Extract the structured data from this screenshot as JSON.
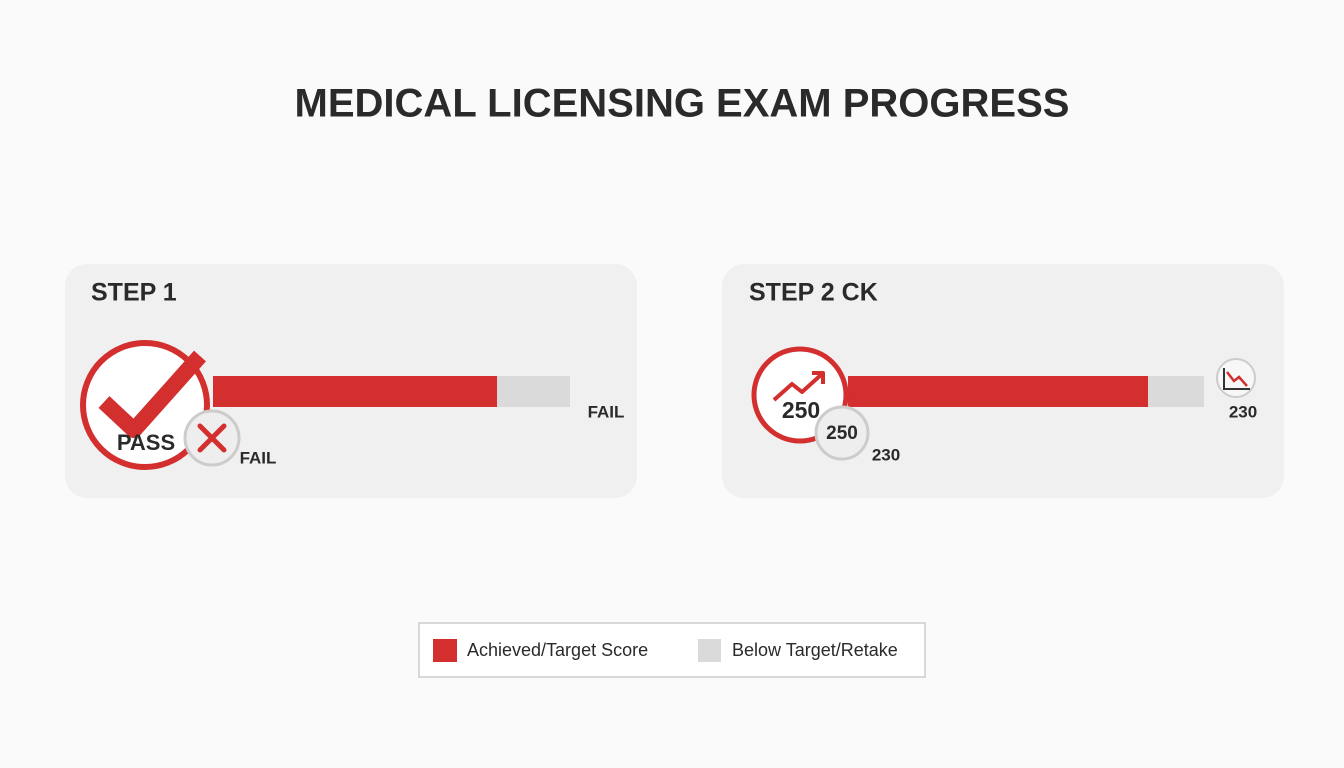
{
  "header": {
    "title": "MEDICAL LICENSING EXAM PROGRESS"
  },
  "cards": [
    {
      "title": "STEP 1",
      "status": "PASS",
      "alt_status": "FAIL",
      "end_label": "FAIL"
    },
    {
      "title": "STEP 2 CK",
      "score": 250,
      "badge_score": 250,
      "badge_caption": 230,
      "end_label": 230
    }
  ],
  "legend": {
    "items": [
      "Achieved/Target Score",
      "Below Target/Retake"
    ]
  }
}
